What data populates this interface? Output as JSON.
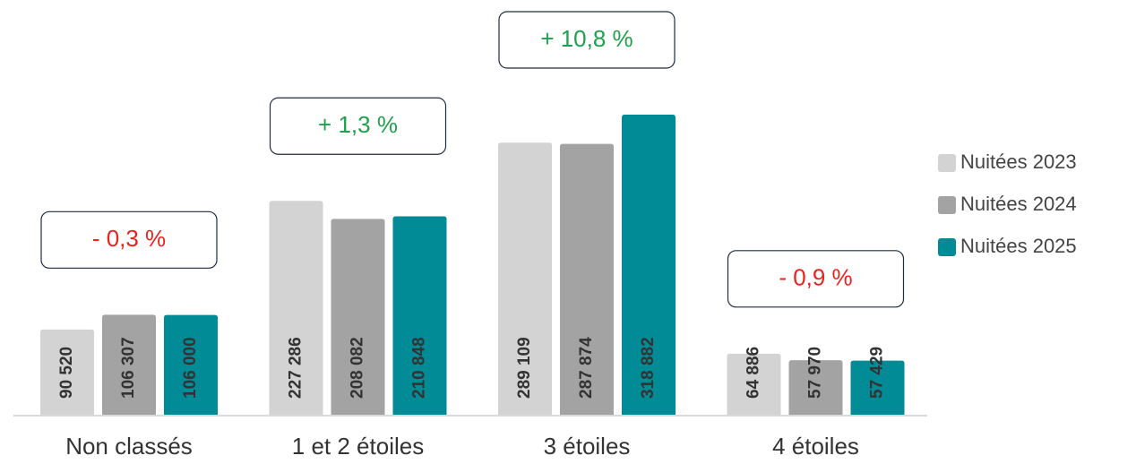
{
  "chart_data": {
    "type": "bar",
    "categories": [
      "Non classés",
      "1 et 2 étoiles",
      "3 étoiles",
      "4 étoiles"
    ],
    "series": [
      {
        "name": "Nuitées 2023",
        "color": "#d3d3d3",
        "values": [
          90520,
          227286,
          289109,
          64886
        ],
        "value_labels": [
          "90 520",
          "227 286",
          "289 109",
          "64 886"
        ]
      },
      {
        "name": "Nuitées 2024",
        "color": "#a3a3a3",
        "values": [
          106307,
          208082,
          287874,
          57970
        ],
        "value_labels": [
          "106 307",
          "208 082",
          "287 874",
          "57 970"
        ]
      },
      {
        "name": "Nuitées 2025",
        "color": "#008b96",
        "values": [
          106000,
          210848,
          318882,
          57429
        ],
        "value_labels": [
          "106 000",
          "210 848",
          "318 882",
          "57 429"
        ]
      }
    ],
    "annotations": [
      {
        "text": "- 0,3 %",
        "color": "#e8231f"
      },
      {
        "text": "+ 1,3 %",
        "color": "#21a04b"
      },
      {
        "text": "+ 10,8 %",
        "color": "#21a04b"
      },
      {
        "text": "- 0,9 %",
        "color": "#e8231f"
      }
    ],
    "legend": "right"
  }
}
